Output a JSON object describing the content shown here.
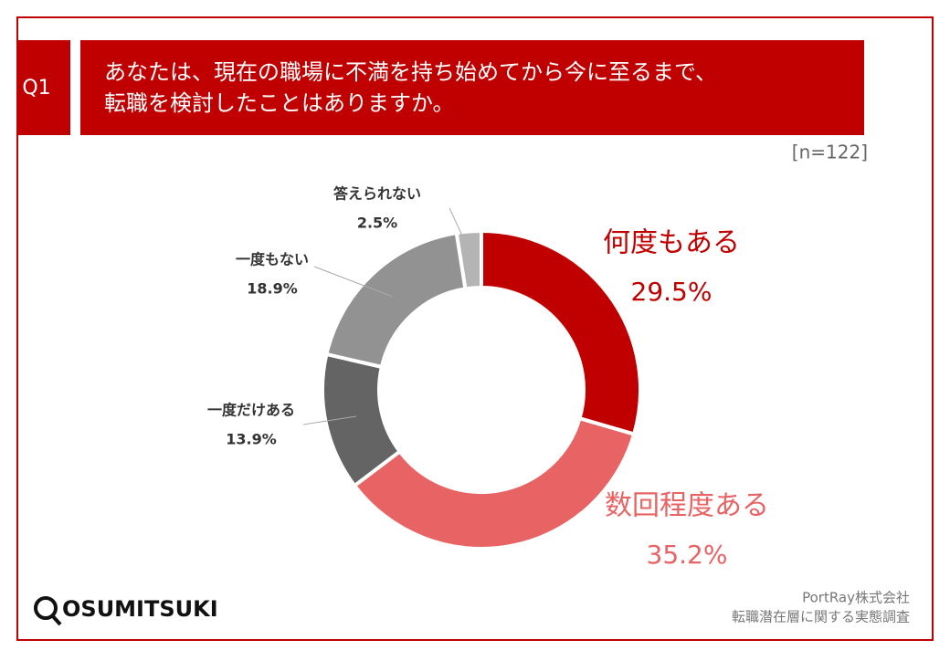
{
  "chart_data": {
    "type": "pie",
    "question_label": "Q1",
    "title": [
      "あなたは、現在の職場に不満を持ち始めてから今に至るまで、",
      "転職を検討したことはありますか。"
    ],
    "note": "[n=122]",
    "categories": [
      "何度もある",
      "数回程度ある",
      "一度だけある",
      "一度もない",
      "答えられない"
    ],
    "values": [
      29.5,
      35.2,
      13.9,
      18.9,
      2.5
    ],
    "value_labels": [
      "29.5%",
      "35.2%",
      "13.9%",
      "18.9%",
      "2.5%"
    ],
    "colors": [
      "#c00000",
      "#e86363",
      "#646464",
      "#929292",
      "#b4b4b4"
    ],
    "donut": true,
    "source": [
      "PortRay株式会社",
      "転職潜在層に関する実態調査"
    ],
    "logo": "OSUMITSUKI"
  }
}
